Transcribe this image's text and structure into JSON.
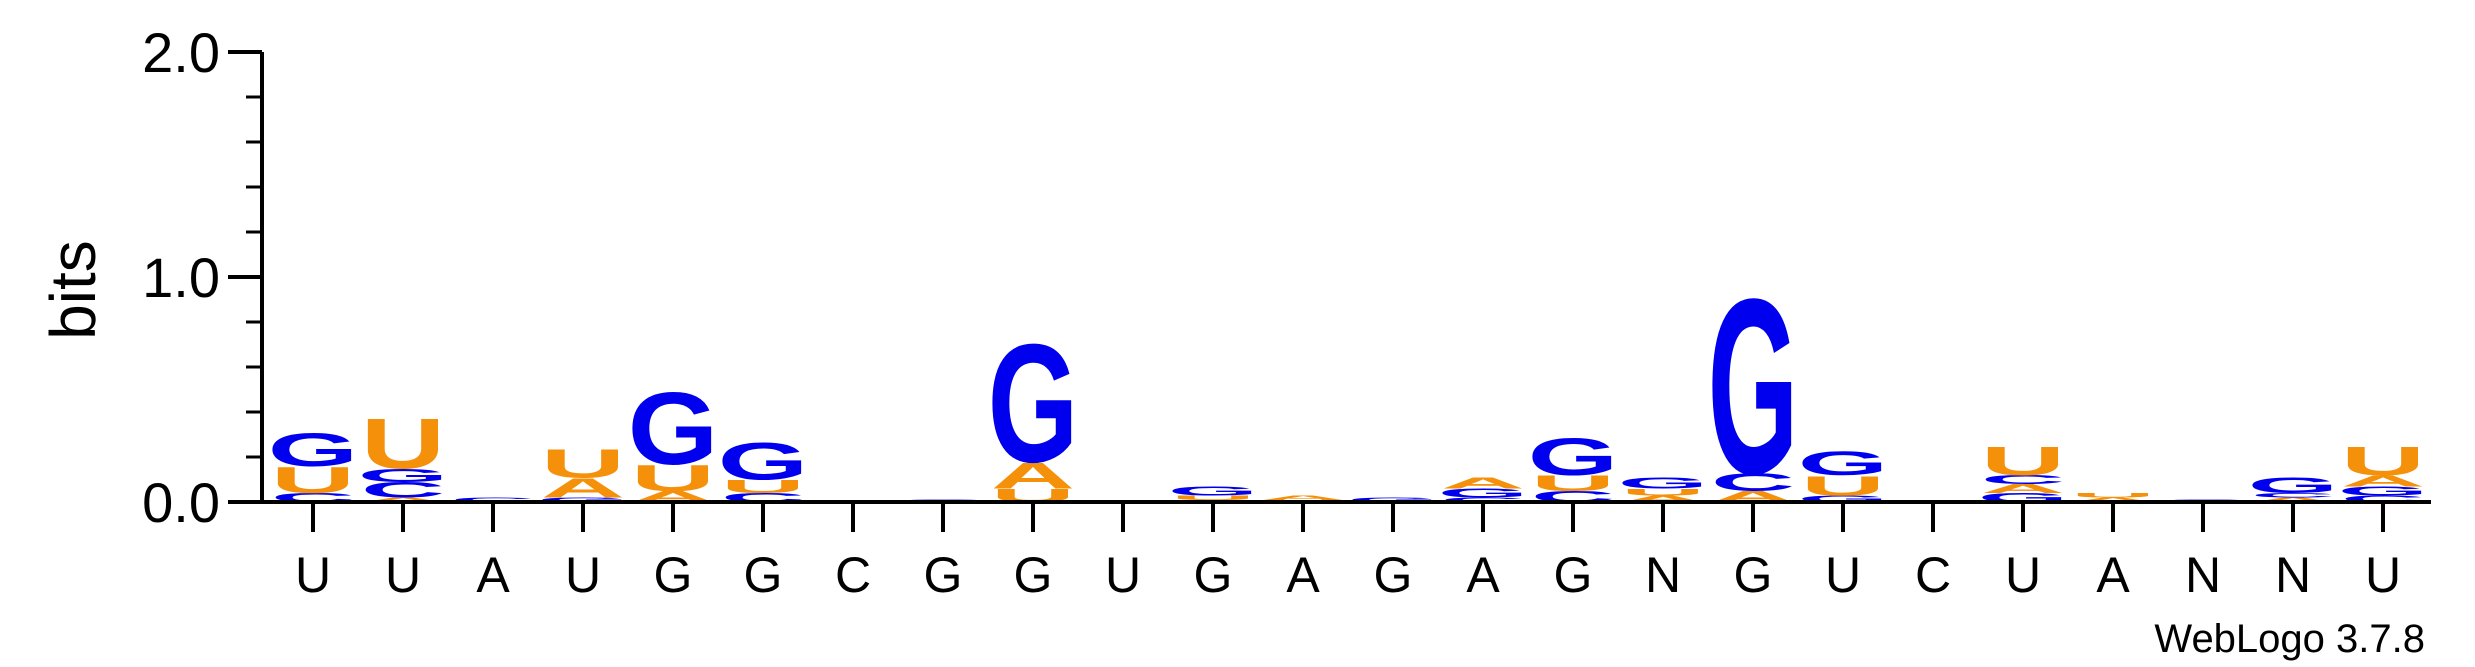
{
  "chart_data": {
    "type": "sequence-logo",
    "ylabel": "bits",
    "ylim": [
      0,
      2.0
    ],
    "yticks": [
      "0.0",
      "1.0",
      "2.0"
    ],
    "colors": {
      "A": "#f5900a",
      "U": "#f5900a",
      "G": "#0000ee",
      "C": "#0000ee",
      "N": "#0000ee"
    },
    "credit": "WebLogo 3.7.8",
    "positions": [
      {
        "label": "U",
        "stack": [
          [
            "C",
            0.04
          ],
          [
            "U",
            0.12
          ],
          [
            "G",
            0.15
          ]
        ]
      },
      {
        "label": "U",
        "stack": [
          [
            "A",
            0.02
          ],
          [
            "C",
            0.07
          ],
          [
            "G",
            0.06
          ],
          [
            "U",
            0.23
          ]
        ]
      },
      {
        "label": "A",
        "stack": [
          [
            "C",
            0.02
          ]
        ]
      },
      {
        "label": "U",
        "stack": [
          [
            "G",
            0.02
          ],
          [
            "A",
            0.09
          ],
          [
            "U",
            0.13
          ]
        ]
      },
      {
        "label": "G",
        "stack": [
          [
            "A",
            0.05
          ],
          [
            "U",
            0.12
          ],
          [
            "G",
            0.33
          ]
        ]
      },
      {
        "label": "G",
        "stack": [
          [
            "C",
            0.04
          ],
          [
            "U",
            0.06
          ],
          [
            "G",
            0.17
          ]
        ]
      },
      {
        "label": "C",
        "stack": []
      },
      {
        "label": "G",
        "stack": [
          [
            "G",
            0.01
          ]
        ]
      },
      {
        "label": "G",
        "stack": [
          [
            "U",
            0.06
          ],
          [
            "A",
            0.12
          ],
          [
            "G",
            0.54
          ]
        ]
      },
      {
        "label": "U",
        "stack": []
      },
      {
        "label": "G",
        "stack": [
          [
            "A",
            0.01
          ],
          [
            "U",
            0.02
          ],
          [
            "G",
            0.04
          ]
        ]
      },
      {
        "label": "A",
        "stack": [
          [
            "U",
            0.01
          ],
          [
            "A",
            0.02
          ]
        ]
      },
      {
        "label": "G",
        "stack": [
          [
            "G",
            0.02
          ]
        ]
      },
      {
        "label": "A",
        "stack": [
          [
            "C",
            0.02
          ],
          [
            "G",
            0.04
          ],
          [
            "A",
            0.05
          ]
        ]
      },
      {
        "label": "G",
        "stack": [
          [
            "C",
            0.05
          ],
          [
            "U",
            0.07
          ],
          [
            "G",
            0.17
          ]
        ]
      },
      {
        "label": "N",
        "stack": [
          [
            "A",
            0.03
          ],
          [
            "U",
            0.03
          ],
          [
            "G",
            0.05
          ]
        ]
      },
      {
        "label": "G",
        "stack": [
          [
            "A",
            0.05
          ],
          [
            "C",
            0.08
          ],
          [
            "G",
            0.8
          ]
        ]
      },
      {
        "label": "U",
        "stack": [
          [
            "G",
            0.03
          ],
          [
            "U",
            0.09
          ],
          [
            "G",
            0.11
          ]
        ]
      },
      {
        "label": "C",
        "stack": []
      },
      {
        "label": "U",
        "stack": [
          [
            "G",
            0.04
          ],
          [
            "A",
            0.04
          ],
          [
            "C",
            0.04
          ],
          [
            "U",
            0.13
          ]
        ]
      },
      {
        "label": "A",
        "stack": [
          [
            "A",
            0.02
          ],
          [
            "U",
            0.02
          ]
        ]
      },
      {
        "label": "N",
        "stack": [
          [
            "C",
            0.01
          ]
        ]
      },
      {
        "label": "N",
        "stack": [
          [
            "A",
            0.02
          ],
          [
            "C",
            0.02
          ],
          [
            "G",
            0.07
          ]
        ]
      },
      {
        "label": "U",
        "stack": [
          [
            "C",
            0.03
          ],
          [
            "G",
            0.04
          ],
          [
            "A",
            0.05
          ],
          [
            "U",
            0.13
          ]
        ]
      }
    ]
  }
}
